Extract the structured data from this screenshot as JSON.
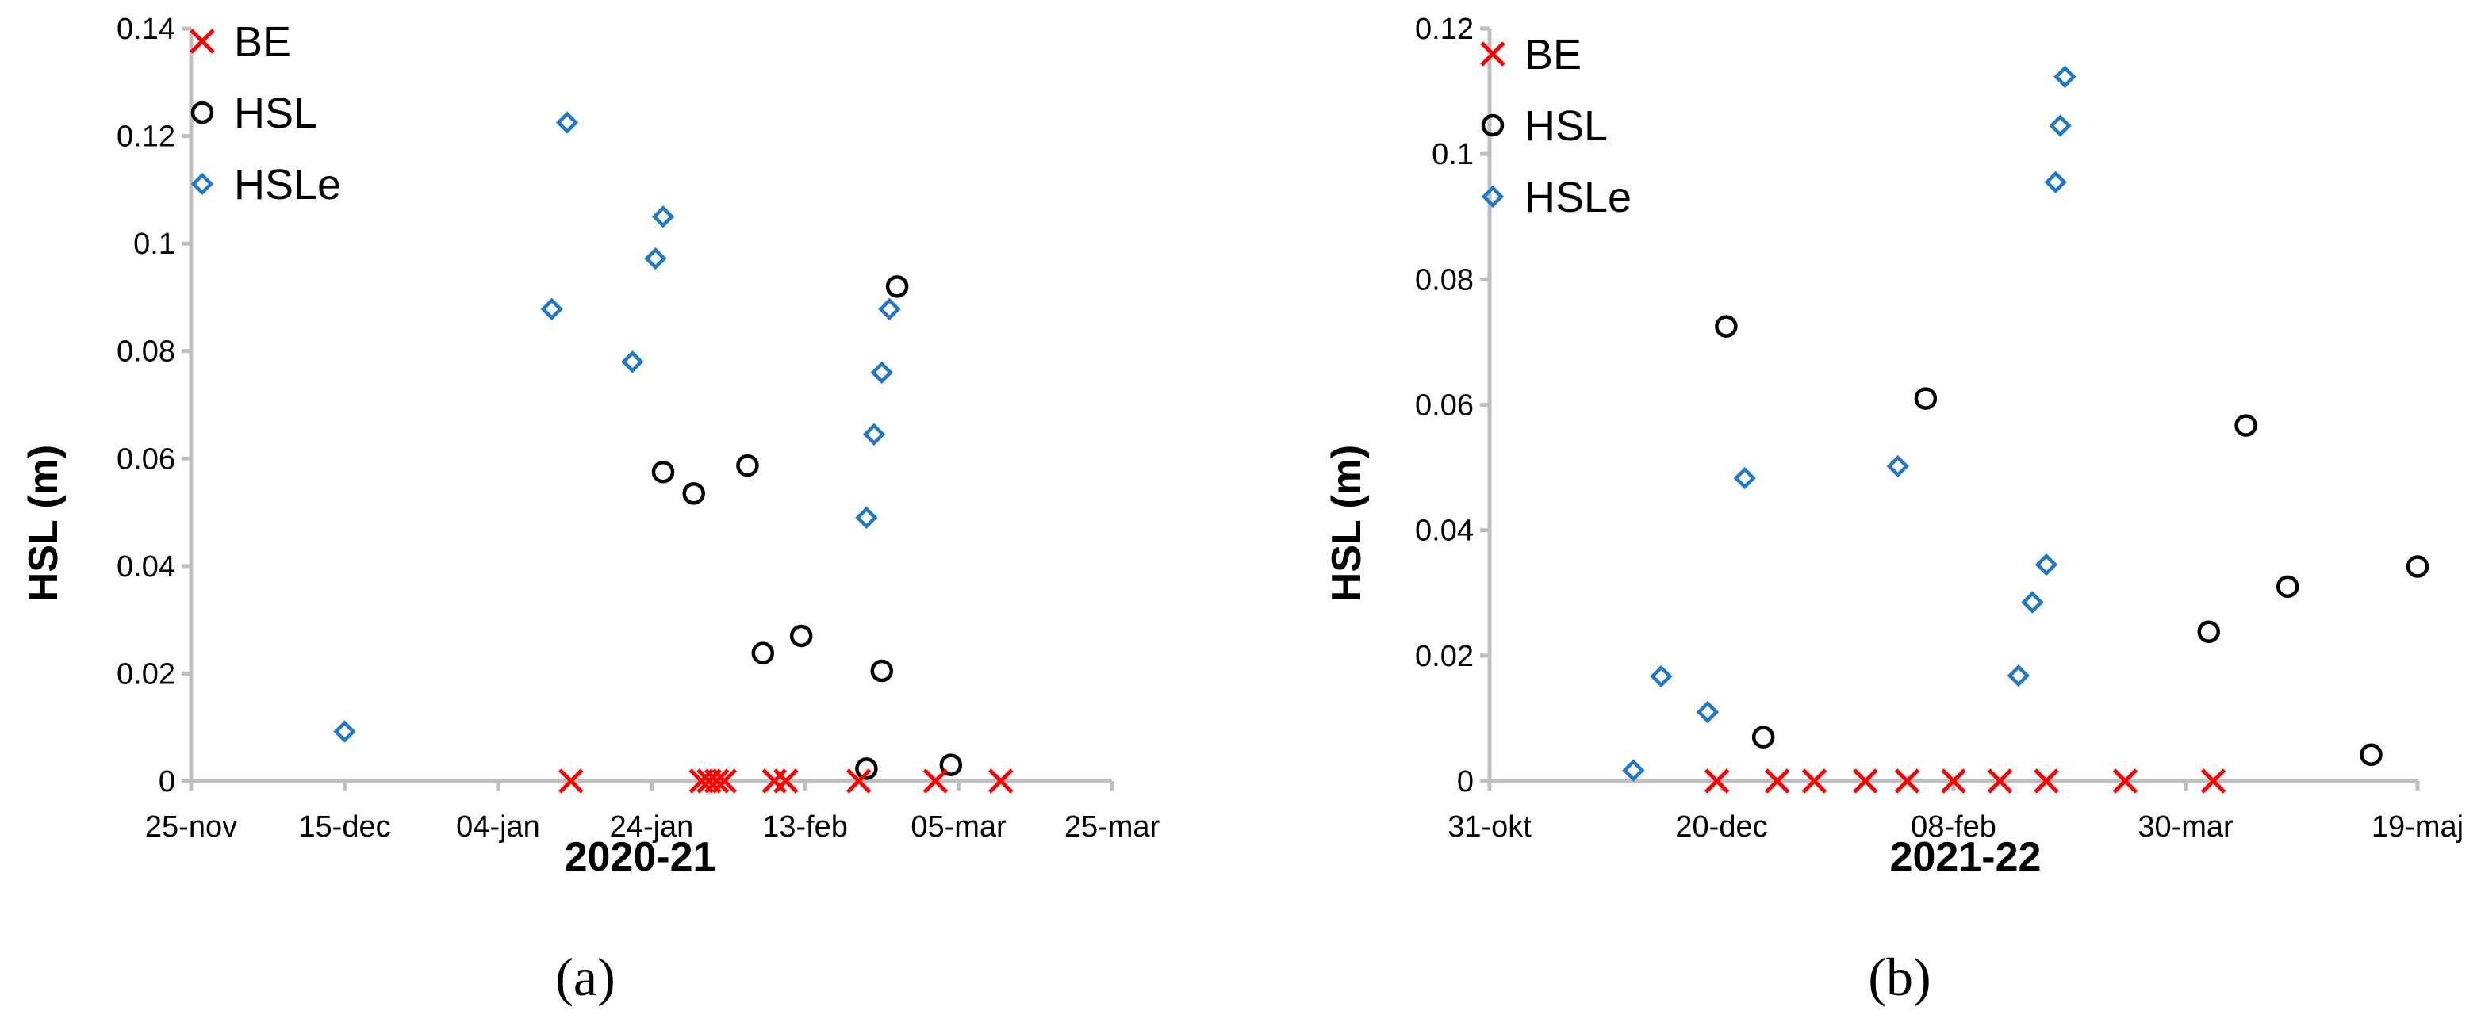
{
  "colors": {
    "BE": "#ff0000",
    "HSL": "#000000",
    "HSLe": "#1f78c8",
    "axis": "#bfbfbf"
  },
  "chart_data": [
    {
      "type": "scatter",
      "panel_label": "(a)",
      "title": "",
      "xlabel": "2020-21",
      "ylabel": "HSL (m)",
      "x_tick_labels": [
        "25-nov",
        "15-dec",
        "04-jan",
        "24-jan",
        "13-feb",
        "05-mar",
        "25-mar"
      ],
      "x_tick_days": [
        0,
        20,
        40,
        60,
        80,
        100,
        120
      ],
      "x_unit": "days since 25-nov-2020",
      "xlim": [
        0,
        120
      ],
      "y_tick_labels": [
        "0",
        "0.02",
        "0.04",
        "0.06",
        "0.08",
        "0.1",
        "0.12",
        "0.14"
      ],
      "ylim": [
        0,
        0.14
      ],
      "legend": [
        "BE",
        "HSL",
        "HSLe"
      ],
      "legend_position": "top-left",
      "series": [
        {
          "name": "BE",
          "marker": "x",
          "x": [
            49.5,
            66.5,
            67.5,
            68.5,
            69.5,
            76.0,
            77.5,
            87.0,
            97.0,
            105.5
          ],
          "y": [
            0,
            0,
            0,
            0,
            0,
            0,
            0,
            0,
            0,
            0
          ]
        },
        {
          "name": "HSL",
          "marker": "circle",
          "x": [
            61.5,
            65.5,
            72.5,
            74.5,
            79.5,
            88.0,
            90.0,
            92.0,
            99.0
          ],
          "y": [
            0.0575,
            0.0535,
            0.0587,
            0.0238,
            0.027,
            0.0023,
            0.0205,
            0.092,
            0.003
          ]
        },
        {
          "name": "HSLe",
          "marker": "diamond",
          "x": [
            20.0,
            47.0,
            49.0,
            57.5,
            60.5,
            61.5,
            88.0,
            89.0,
            90.0,
            91.0
          ],
          "y": [
            0.0092,
            0.0878,
            0.1225,
            0.078,
            0.0972,
            0.105,
            0.049,
            0.0645,
            0.076,
            0.0878
          ]
        }
      ]
    },
    {
      "type": "scatter",
      "panel_label": "(b)",
      "title": "",
      "xlabel": "2021-22",
      "ylabel": "HSL (m)",
      "x_tick_labels": [
        "31-okt",
        "20-dec",
        "08-feb",
        "30-mar",
        "19-maj"
      ],
      "x_tick_days": [
        0,
        50,
        100,
        150,
        200
      ],
      "x_unit": "days since 31-okt-2021",
      "xlim": [
        0,
        200
      ],
      "y_tick_labels": [
        "0",
        "0.02",
        "0.04",
        "0.06",
        "0.08",
        "0.1",
        "0.12"
      ],
      "ylim": [
        0,
        0.12
      ],
      "legend": [
        "BE",
        "HSL",
        "HSLe"
      ],
      "legend_position": "top-left",
      "series": [
        {
          "name": "BE",
          "marker": "x",
          "x": [
            49,
            62,
            70,
            81,
            90,
            100,
            110,
            120,
            137,
            156
          ],
          "y": [
            0,
            0,
            0,
            0,
            0,
            0,
            0,
            0,
            0,
            0
          ]
        },
        {
          "name": "HSL",
          "marker": "circle",
          "x": [
            51,
            59,
            94,
            155,
            163,
            172,
            190,
            200
          ],
          "y": [
            0.0725,
            0.007,
            0.061,
            0.0238,
            0.0567,
            0.031,
            0.0042,
            0.0342
          ]
        },
        {
          "name": "HSLe",
          "marker": "diamond",
          "x": [
            31,
            37,
            47,
            55,
            88,
            114,
            117,
            120,
            122,
            123,
            124
          ],
          "y": [
            0.0017,
            0.0167,
            0.011,
            0.0483,
            0.0502,
            0.0168,
            0.0285,
            0.0345,
            0.0955,
            0.1045,
            0.1123
          ]
        }
      ]
    }
  ]
}
